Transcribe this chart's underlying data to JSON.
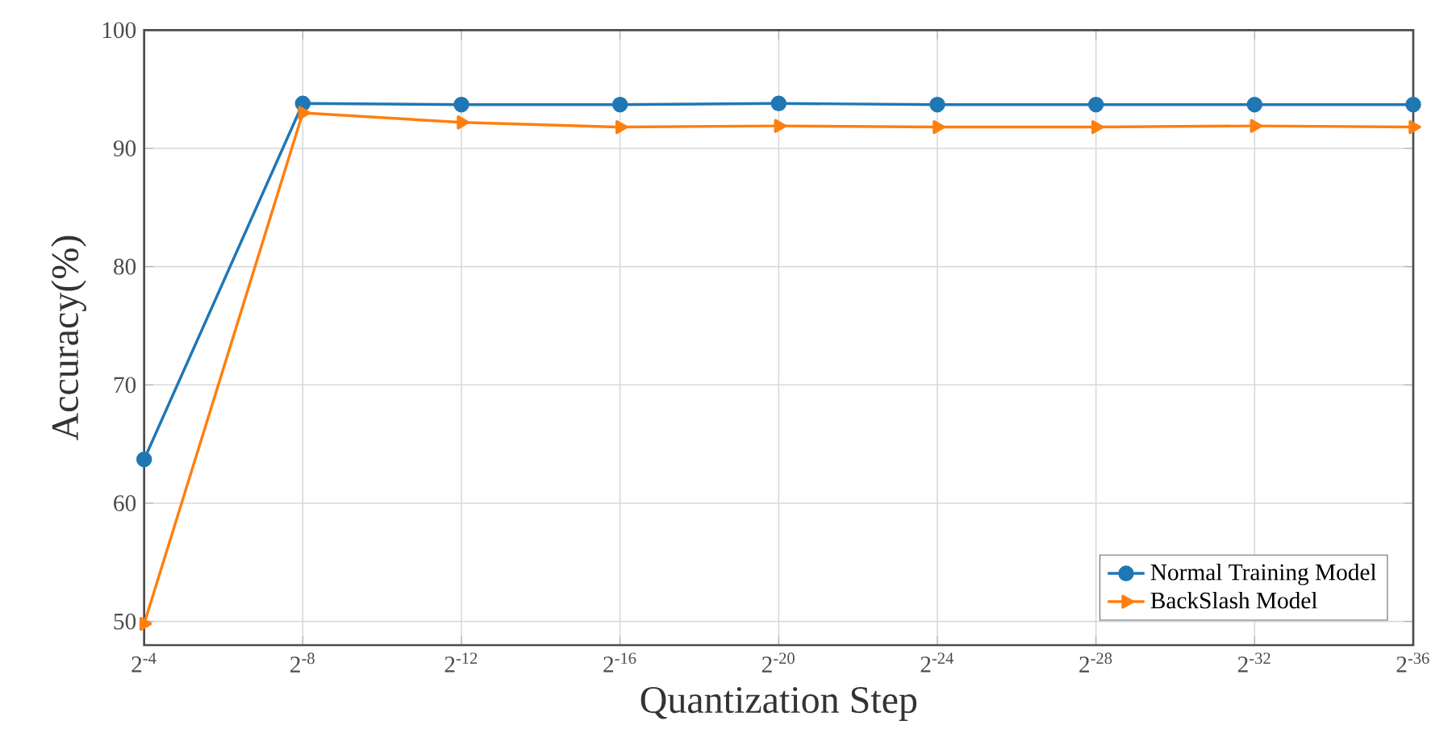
{
  "chart_data": {
    "type": "line",
    "xlabel": "Quantization Step",
    "ylabel": "Accuracy(%)",
    "categories": [
      "2$^{-4}$",
      "2$^{-8}$",
      "2$^{-12}$",
      "2$^{-16}$",
      "2$^{-20}$",
      "2$^{-24}$",
      "2$^{-28}$",
      "2$^{-32}$",
      "2$^{-36}$"
    ],
    "ylim": [
      48,
      100
    ],
    "yticks": [
      50,
      60,
      70,
      80,
      90,
      100
    ],
    "grid": true,
    "legend": "bottom right",
    "series": [
      {
        "name": "Normal Training Model",
        "color": "#1f77b4",
        "marker": "circle",
        "values": [
          63.7,
          93.8,
          93.7,
          93.7,
          93.8,
          93.7,
          93.7,
          93.7,
          93.7
        ]
      },
      {
        "name": "BackSlash Model",
        "color": "#ff7f0e",
        "marker": "triangle",
        "values": [
          49.8,
          93.0,
          92.2,
          91.8,
          91.9,
          91.8,
          91.8,
          91.9,
          91.8
        ]
      }
    ]
  }
}
